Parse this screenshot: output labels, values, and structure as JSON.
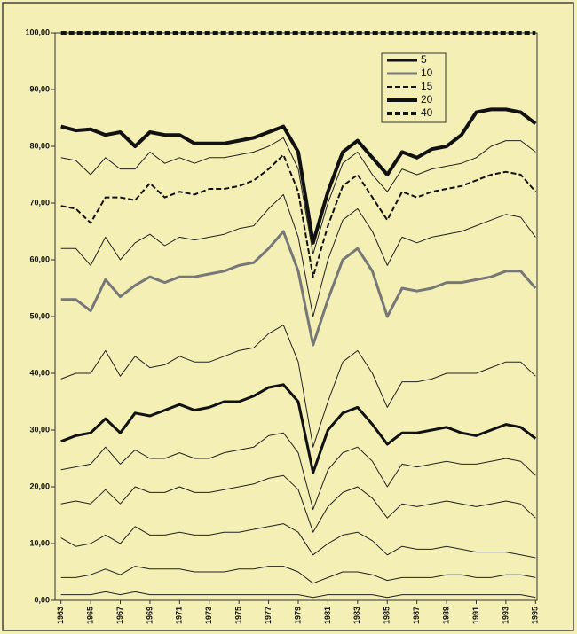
{
  "chart_data": {
    "type": "line",
    "x": [
      1963,
      1964,
      1965,
      1966,
      1967,
      1968,
      1969,
      1970,
      1971,
      1972,
      1973,
      1974,
      1975,
      1976,
      1977,
      1978,
      1979,
      1980,
      1981,
      1982,
      1983,
      1984,
      1985,
      1986,
      1987,
      1988,
      1989,
      1990,
      1991,
      1992,
      1993,
      1994,
      1995
    ],
    "xlim": [
      1962.6,
      1995.1
    ],
    "xticks": [
      1963,
      1965,
      1967,
      1969,
      1971,
      1973,
      1975,
      1977,
      1979,
      1981,
      1983,
      1985,
      1987,
      1989,
      1991,
      1993,
      1995
    ],
    "ylim": [
      0,
      100
    ],
    "yticks": [
      {
        "value": 0,
        "label": "0,00"
      },
      {
        "value": 10,
        "label": "10,00"
      },
      {
        "value": 20,
        "label": "20,00"
      },
      {
        "value": 30,
        "label": "30,00"
      },
      {
        "value": 40,
        "label": "40,00"
      },
      {
        "value": 50,
        "label": "50,00"
      },
      {
        "value": 60,
        "label": "60,00"
      },
      {
        "value": 70,
        "label": "70,00"
      },
      {
        "value": 80,
        "label": "80,00"
      },
      {
        "value": 90,
        "label": "90,00"
      },
      {
        "value": 100,
        "label": "100,00"
      }
    ],
    "series": [
      {
        "name": "5",
        "color": "#111111",
        "width": 3,
        "dash": false,
        "values": [
          28,
          29,
          29.5,
          32,
          29.5,
          33,
          32.5,
          33.5,
          34.5,
          33.5,
          34,
          35,
          35,
          36,
          37.5,
          38,
          35,
          22.5,
          30,
          33,
          34,
          31,
          27.5,
          29.5,
          29.5,
          30,
          30.5,
          29.5,
          29,
          30,
          31,
          30.5,
          28.5
        ]
      },
      {
        "name": "10",
        "color": "#777777",
        "width": 3,
        "dash": false,
        "values": [
          53,
          53,
          51,
          56.5,
          53.5,
          55.5,
          57,
          56,
          57,
          57,
          57.5,
          58,
          59,
          59.5,
          62,
          65,
          58,
          45,
          53,
          60,
          62,
          58,
          50,
          55,
          54.5,
          55,
          56,
          56,
          56.5,
          57,
          58,
          58,
          55
        ]
      },
      {
        "name": "15",
        "color": "#111111",
        "width": 2,
        "dash": true,
        "values": [
          69.5,
          69,
          66.5,
          71,
          71,
          70.5,
          73.5,
          71,
          72,
          71.5,
          72.5,
          72.5,
          73,
          74,
          76,
          78.5,
          72,
          57,
          66,
          73,
          75,
          71,
          67,
          72,
          71,
          72,
          72.5,
          73,
          74,
          75,
          75.5,
          75,
          72
        ]
      },
      {
        "name": "20",
        "color": "#111111",
        "width": 4,
        "dash": false,
        "values": [
          83.5,
          82.8,
          83,
          82,
          82.5,
          80,
          82.5,
          82,
          82,
          80.5,
          80.5,
          80.5,
          81,
          81.5,
          82.5,
          83.5,
          79,
          63,
          72,
          79,
          81,
          78,
          75,
          79,
          78,
          79.5,
          80,
          82,
          86,
          86.5,
          86.5,
          86,
          84
        ]
      },
      {
        "name": "40",
        "color": "#111111",
        "width": 4,
        "dash": true,
        "values": [
          100,
          100,
          100,
          100,
          100,
          100,
          100,
          100,
          100,
          100,
          100,
          100,
          100,
          100,
          100,
          100,
          100,
          100,
          100,
          100,
          100,
          100,
          100,
          100,
          100,
          100,
          100,
          100,
          100,
          100,
          100,
          100,
          100
        ]
      },
      {
        "color": "#222222",
        "width": 1,
        "dash": false,
        "values": [
          1,
          1,
          1,
          1.5,
          1,
          1.5,
          1,
          1,
          1,
          1,
          1,
          1,
          1,
          1,
          1,
          1,
          1,
          0.5,
          1,
          1,
          1,
          1,
          0.5,
          1,
          1,
          1,
          1,
          1,
          1,
          1,
          1,
          1,
          0.5
        ]
      },
      {
        "color": "#222222",
        "width": 1,
        "dash": false,
        "values": [
          4,
          4,
          4.5,
          5.5,
          4.5,
          6,
          5.5,
          5.5,
          5.5,
          5,
          5,
          5,
          5.5,
          5.5,
          6,
          6,
          5,
          3,
          4,
          5,
          5,
          4.5,
          3.5,
          4,
          4,
          4,
          4.5,
          4.5,
          4,
          4,
          4.5,
          4.5,
          4
        ]
      },
      {
        "color": "#222222",
        "width": 1,
        "dash": false,
        "values": [
          11,
          9.5,
          10,
          11.5,
          10,
          13,
          11.5,
          11.5,
          12,
          11.5,
          11.5,
          12,
          12,
          12.5,
          13,
          13.5,
          12,
          8,
          10,
          11.5,
          12,
          10.5,
          8,
          9.5,
          9,
          9,
          9.5,
          9,
          8.5,
          8.5,
          8.5,
          8,
          7.5
        ]
      },
      {
        "color": "#222222",
        "width": 1,
        "dash": false,
        "values": [
          17,
          17.5,
          17,
          19.5,
          17,
          20,
          19,
          19,
          20,
          19,
          19,
          19.5,
          20,
          20.5,
          21.5,
          22,
          19.5,
          12,
          16.5,
          19,
          20,
          18,
          14.5,
          17,
          16.5,
          17,
          17.5,
          17,
          16.5,
          17,
          17.5,
          17,
          14.5
        ]
      },
      {
        "color": "#222222",
        "width": 1,
        "dash": false,
        "values": [
          23,
          23.5,
          24,
          27,
          24,
          26.5,
          25,
          25,
          26,
          25,
          25,
          26,
          26.5,
          27,
          29,
          29.5,
          26,
          16,
          23,
          26,
          27,
          24.5,
          20,
          24,
          23.5,
          24,
          24.5,
          24,
          24,
          24.5,
          25,
          24.5,
          22
        ]
      },
      {
        "color": "#222222",
        "width": 1,
        "dash": false,
        "values": [
          39,
          40,
          40,
          44,
          39.5,
          43,
          41,
          41.5,
          43,
          42,
          42,
          43,
          44,
          44.5,
          47,
          48.5,
          42,
          27,
          35,
          42,
          44,
          40,
          34,
          38.5,
          38.5,
          39,
          40,
          40,
          40,
          41,
          42,
          42,
          39.5
        ]
      },
      {
        "color": "#222222",
        "width": 1,
        "dash": false,
        "values": [
          62,
          62,
          59,
          64,
          60,
          63,
          64.5,
          62.5,
          64,
          63.5,
          64,
          64.5,
          65.5,
          66,
          69,
          71.5,
          64,
          50,
          60,
          67,
          69,
          65,
          59,
          64,
          63,
          64,
          64.5,
          65,
          66,
          67,
          68,
          67.5,
          64
        ]
      },
      {
        "color": "#222222",
        "width": 1,
        "dash": false,
        "values": [
          78,
          77.5,
          75,
          78,
          76,
          76,
          79,
          77,
          78,
          77,
          78,
          78,
          78.5,
          79,
          80,
          81.5,
          76,
          61,
          70,
          77,
          79,
          75,
          72,
          76,
          75,
          76,
          76.5,
          77,
          78,
          80,
          81,
          81,
          79
        ]
      }
    ]
  }
}
